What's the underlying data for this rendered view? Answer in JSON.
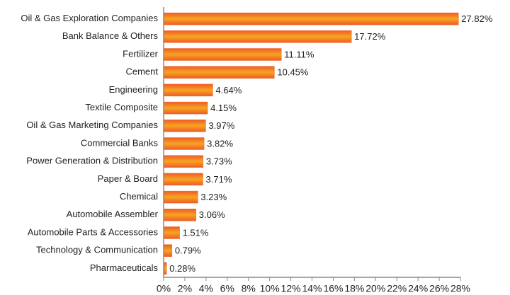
{
  "chart_data": {
    "type": "bar",
    "orientation": "horizontal",
    "categories": [
      "Oil & Gas Exploration Companies",
      "Bank Balance & Others",
      "Fertilizer",
      "Cement",
      "Engineering",
      "Textile Composite",
      "Oil & Gas Marketing Companies",
      "Commercial Banks",
      "Power Generation & Distribution",
      "Paper & Board",
      "Chemical",
      "Automobile Assembler",
      "Automobile Parts & Accessories",
      "Technology & Communication",
      "Pharmaceuticals"
    ],
    "values": [
      27.82,
      17.72,
      11.11,
      10.45,
      4.64,
      4.15,
      3.97,
      3.82,
      3.73,
      3.71,
      3.23,
      3.06,
      1.51,
      0.79,
      0.28
    ],
    "value_labels": [
      "27.82%",
      "17.72%",
      "11.11%",
      "10.45%",
      "4.64%",
      "4.15%",
      "3.97%",
      "3.82%",
      "3.73%",
      "3.71%",
      "3.23%",
      "3.06%",
      "1.51%",
      "0.79%",
      "0.28%"
    ],
    "color": "#f26b22",
    "xlim": [
      0,
      28
    ],
    "xticks": [
      {
        "value": 0,
        "label": "0%"
      },
      {
        "value": 2,
        "label": "2%"
      },
      {
        "value": 4,
        "label": "4%"
      },
      {
        "value": 6,
        "label": "6%"
      },
      {
        "value": 8,
        "label": "8%"
      },
      {
        "value": 10,
        "label": "10%"
      },
      {
        "value": 12,
        "label": "12%"
      },
      {
        "value": 14,
        "label": "14%"
      },
      {
        "value": 16,
        "label": "16%"
      },
      {
        "value": 18,
        "label": "18%"
      },
      {
        "value": 20,
        "label": "20%"
      },
      {
        "value": 22,
        "label": "22%"
      },
      {
        "value": 24,
        "label": "24%"
      },
      {
        "value": 26,
        "label": "26%"
      },
      {
        "value": 28,
        "label": "28%"
      }
    ],
    "grid": false
  }
}
